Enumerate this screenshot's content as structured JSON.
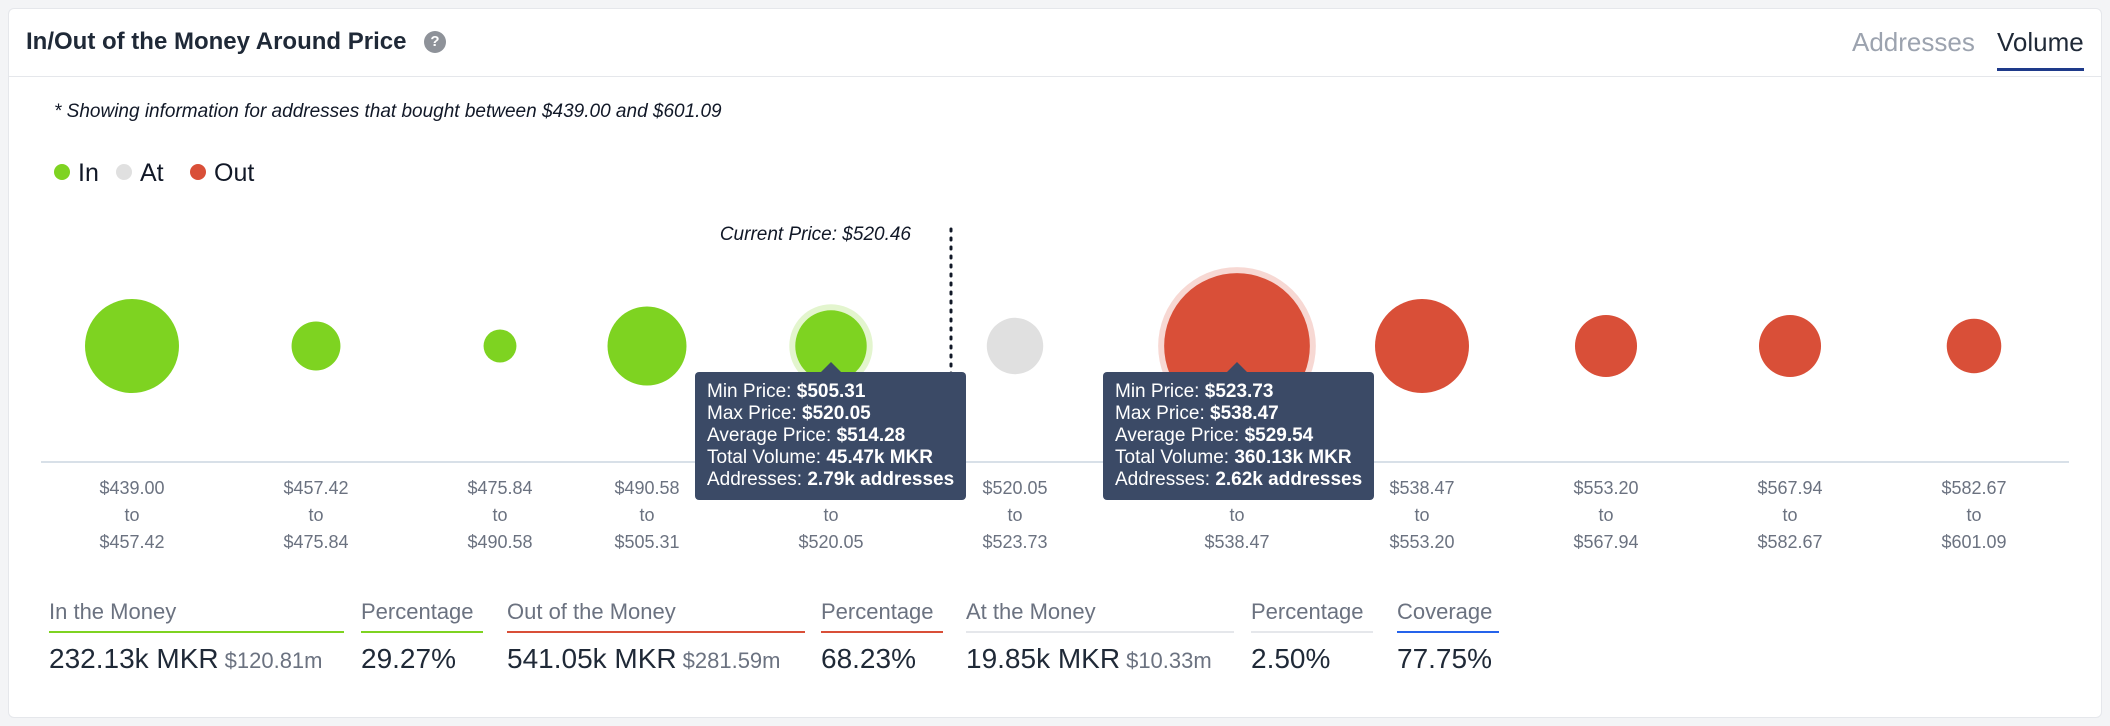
{
  "header": {
    "title": "In/Out of the Money Around Price",
    "help_icon": "question-circle-icon",
    "tabs": [
      {
        "label": "Addresses",
        "active": false
      },
      {
        "label": "Volume",
        "active": true
      }
    ]
  },
  "note": "* Showing information for addresses that bought between $439.00 and $601.09",
  "legend": [
    {
      "label": "In",
      "color": "#7ed321"
    },
    {
      "label": "At",
      "color": "#e0e0e0"
    },
    {
      "label": "Out",
      "color": "#d94f38"
    }
  ],
  "chart_data": {
    "type": "scatter",
    "annotation": "Current Price: $520.46",
    "current_price_position_after_index": 4,
    "buckets": [
      {
        "from": "$439.00",
        "to": "$457.42",
        "status": "in",
        "relative_size": 1.0
      },
      {
        "from": "$457.42",
        "to": "$475.84",
        "status": "in",
        "relative_size": 0.52
      },
      {
        "from": "$475.84",
        "to": "$490.58",
        "status": "in",
        "relative_size": 0.35
      },
      {
        "from": "$490.58",
        "to": "$505.31",
        "status": "in",
        "relative_size": 0.84
      },
      {
        "from": "$505.31",
        "to": "$520.05",
        "status": "in",
        "relative_size": 0.76,
        "highlighted": true
      },
      {
        "from": "$520.05",
        "to": "$523.73",
        "status": "at",
        "relative_size": 0.6
      },
      {
        "from": "$523.73",
        "to": "$538.47",
        "status": "out",
        "relative_size": 1.55,
        "highlighted": true
      },
      {
        "from": "$538.47",
        "to": "$553.20",
        "status": "out",
        "relative_size": 1.0
      },
      {
        "from": "$553.20",
        "to": "$567.94",
        "status": "out",
        "relative_size": 0.66
      },
      {
        "from": "$567.94",
        "to": "$582.67",
        "status": "out",
        "relative_size": 0.66
      },
      {
        "from": "$582.67",
        "to": "$601.09",
        "status": "out",
        "relative_size": 0.58
      }
    ],
    "range_connector": "to",
    "tooltips": [
      {
        "bucket_index": 4,
        "rows": [
          {
            "label": "Min Price:",
            "value": "$505.31"
          },
          {
            "label": "Max Price:",
            "value": "$520.05"
          },
          {
            "label": "Average Price:",
            "value": "$514.28"
          },
          {
            "label": "Total Volume:",
            "value": "45.47k MKR"
          },
          {
            "label": "Addresses:",
            "value": "2.79k addresses"
          }
        ]
      },
      {
        "bucket_index": 6,
        "rows": [
          {
            "label": "Min Price:",
            "value": "$523.73"
          },
          {
            "label": "Max Price:",
            "value": "$538.47"
          },
          {
            "label": "Average Price:",
            "value": "$529.54"
          },
          {
            "label": "Total Volume:",
            "value": "360.13k MKR"
          },
          {
            "label": "Addresses:",
            "value": "2.62k addresses"
          }
        ]
      }
    ]
  },
  "stats": [
    {
      "label": "In the Money",
      "value": "232.13k MKR",
      "sub": "$120.81m",
      "color": "#7ed321"
    },
    {
      "label": "Percentage",
      "value": "29.27%",
      "color": "#7ed321"
    },
    {
      "label": "Out of the Money",
      "value": "541.05k MKR",
      "sub": "$281.59m",
      "color": "#d94f38"
    },
    {
      "label": "Percentage",
      "value": "68.23%",
      "color": "#d94f38"
    },
    {
      "label": "At the Money",
      "value": "19.85k MKR",
      "sub": "$10.33m",
      "color": "#e5e7eb"
    },
    {
      "label": "Percentage",
      "value": "2.50%",
      "color": "#e5e7eb"
    },
    {
      "label": "Coverage",
      "value": "77.75%",
      "color": "#2563eb"
    }
  ]
}
